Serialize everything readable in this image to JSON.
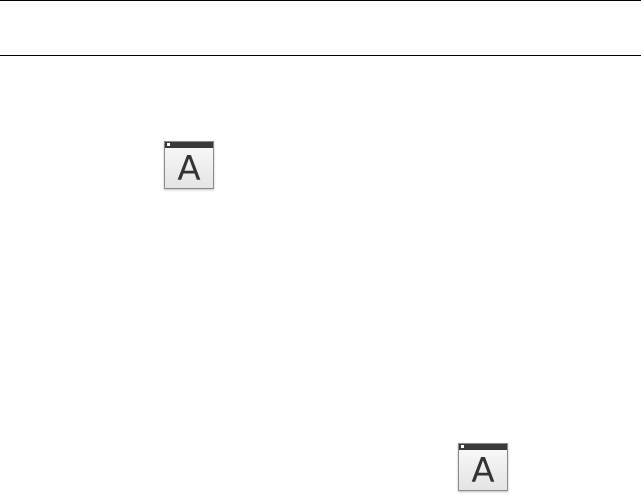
{
  "icons": [
    {
      "name": "font-app-icon",
      "glyph": "A"
    },
    {
      "name": "font-app-icon",
      "glyph": "A"
    }
  ],
  "colors": {
    "rule": "#000000",
    "icon_bar": "#3a3a3a"
  }
}
